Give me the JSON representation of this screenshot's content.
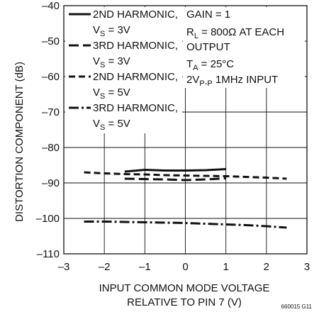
{
  "chart_data": {
    "type": "line",
    "xlabel_line1": "INPUT COMMON MODE VOLTAGE",
    "xlabel_line2": "RELATIVE TO PIN 7 (V)",
    "ylabel": "DISTORTION COMPONENT (dB)",
    "xlim": [
      -3,
      3
    ],
    "ylim": [
      -110,
      -40
    ],
    "xticks": [
      -3,
      -2,
      -1,
      0,
      1,
      2,
      3
    ],
    "yticks": [
      -110,
      -100,
      -90,
      -80,
      -70,
      -60,
      -50,
      -40
    ],
    "xtick_labels": [
      "–3",
      "–2",
      "–1",
      "0",
      "1",
      "2",
      "3"
    ],
    "ytick_labels": [
      "–110",
      "–100",
      "–90",
      "–80",
      "–70",
      "–60",
      "–50",
      "–40"
    ],
    "grid": true,
    "series": [
      {
        "legend_line1": "2ND HARMONIC,",
        "legend_line2_main": "V",
        "legend_line2_sub": "S",
        "legend_line2_rest": " = 3V",
        "style": "solid",
        "x": [
          -1.5,
          -1.0,
          -0.5,
          0.0,
          0.5,
          1.0
        ],
        "values": [
          -86.8,
          -86.3,
          -86.5,
          -86.5,
          -86.4,
          -86.1
        ]
      },
      {
        "legend_line1": "3RD HARMONIC,",
        "legend_line2_main": "V",
        "legend_line2_sub": "S",
        "legend_line2_rest": " = 3V",
        "style": "longdash",
        "x": [
          -1.5,
          -1.0,
          -0.5,
          0.0,
          0.5,
          1.0
        ],
        "values": [
          -88.8,
          -88.9,
          -89.0,
          -89.2,
          -89.0,
          -88.7
        ]
      },
      {
        "legend_line1": "2ND HARMONIC,",
        "legend_line2_main": "V",
        "legend_line2_sub": "S",
        "legend_line2_rest": " = 5V",
        "style": "dash",
        "x": [
          -2.5,
          -2.0,
          -1.5,
          -1.0,
          -0.5,
          0.0,
          0.5,
          1.0,
          1.5,
          2.0,
          2.5
        ],
        "values": [
          -87.0,
          -87.3,
          -87.5,
          -87.6,
          -87.8,
          -87.9,
          -88.0,
          -88.1,
          -88.3,
          -88.5,
          -88.8
        ]
      },
      {
        "legend_line1": "3RD HARMONIC,",
        "legend_line2_main": "V",
        "legend_line2_sub": "S",
        "legend_line2_rest": " = 5V",
        "style": "dashdot",
        "x": [
          -2.5,
          -2.0,
          -1.5,
          -1.0,
          -0.5,
          0.0,
          0.5,
          1.0,
          1.5,
          2.0,
          2.5
        ],
        "values": [
          -100.9,
          -100.9,
          -101.0,
          -101.1,
          -101.2,
          -101.3,
          -101.5,
          -101.7,
          -101.9,
          -102.2,
          -102.6
        ]
      }
    ],
    "conditions": {
      "gain": "GAIN = 1",
      "rl_main": "R",
      "rl_sub": "L",
      "rl_rest": " = 800Ω AT EACH",
      "output": "OUTPUT",
      "ta_main": "T",
      "ta_sub": "A",
      "ta_rest": " = 25°C",
      "input_main": "2V",
      "input_sub": "P-P",
      "input_rest": " 1MHz INPUT"
    },
    "figure_id": "660015 G11"
  }
}
